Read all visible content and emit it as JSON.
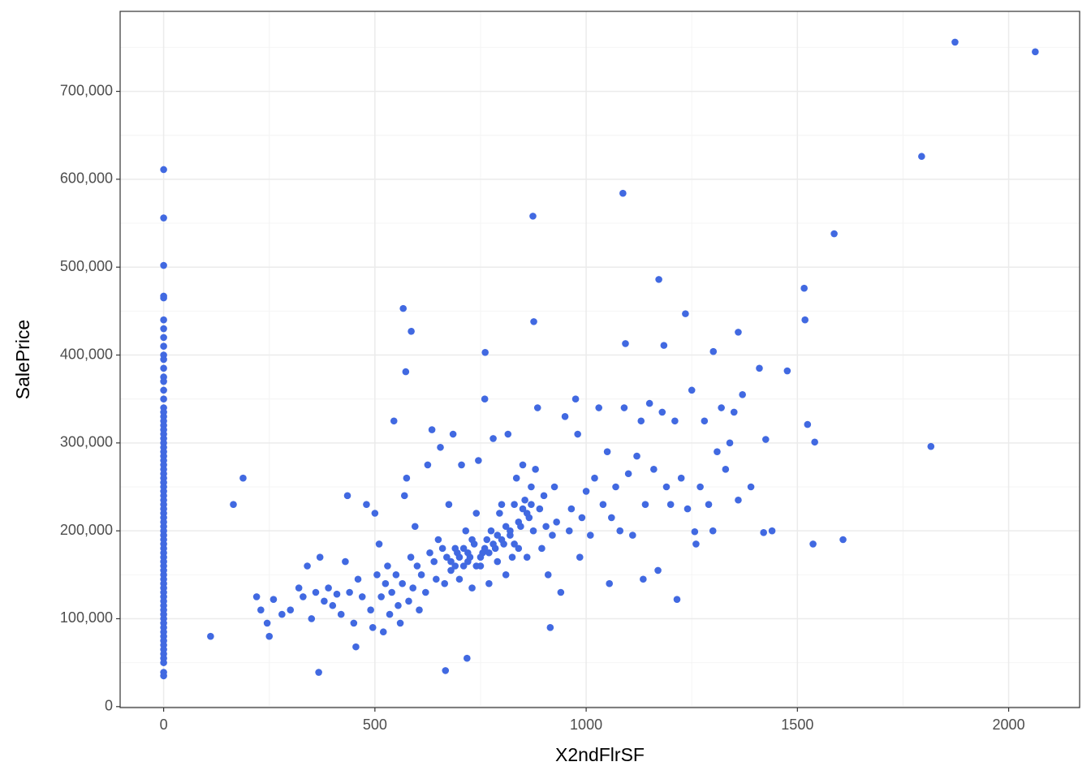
{
  "chart_data": {
    "type": "scatter",
    "xlabel": "X2ndFlrSF",
    "ylabel": "SalePrice",
    "color": "#4169e1",
    "grid": true,
    "xlim": [
      -103,
      2168
    ],
    "ylim": [
      -1105,
      791005
    ],
    "xticks": [
      0,
      500,
      1000,
      1500,
      2000
    ],
    "yticks": [
      0,
      {
        "value": 100000,
        "label": "100,000"
      },
      {
        "value": 200000,
        "label": "200,000"
      },
      {
        "value": 300000,
        "label": "300,000"
      },
      {
        "value": 400000,
        "label": "400,000"
      },
      {
        "value": 500000,
        "label": "500,000"
      },
      {
        "value": 600000,
        "label": "600,000"
      },
      {
        "value": 700000,
        "label": "700,000"
      }
    ],
    "xminor": [
      250,
      750,
      1250,
      1750
    ],
    "yminor": [
      50000,
      150000,
      250000,
      350000,
      450000,
      550000,
      650000,
      750000
    ],
    "x": [
      0,
      0,
      0,
      0,
      0,
      0,
      0,
      0,
      0,
      0,
      0,
      0,
      0,
      0,
      0,
      0,
      0,
      0,
      0,
      0,
      0,
      0,
      0,
      0,
      0,
      0,
      0,
      0,
      0,
      0,
      0,
      0,
      0,
      0,
      0,
      0,
      0,
      0,
      0,
      0,
      0,
      0,
      0,
      0,
      0,
      0,
      0,
      0,
      0,
      0,
      0,
      0,
      0,
      0,
      0,
      0,
      0,
      0,
      0,
      0,
      0,
      0,
      0,
      0,
      0,
      0,
      0,
      0,
      0,
      0,
      0,
      0,
      0,
      0,
      0,
      0,
      0,
      1873,
      2063,
      1794,
      1587,
      1087,
      874,
      1516,
      1172,
      1235,
      1518,
      1360,
      567,
      586,
      876,
      1093,
      1184,
      761,
      1301,
      1410,
      1476,
      573,
      1816,
      1537,
      1608,
      1524,
      1541,
      1425,
      1257,
      188,
      165,
      111,
      367,
      667,
      718,
      220,
      230,
      245,
      250,
      260,
      280,
      300,
      320,
      330,
      340,
      350,
      360,
      370,
      380,
      390,
      400,
      410,
      420,
      430,
      435,
      440,
      450,
      455,
      460,
      470,
      480,
      490,
      495,
      500,
      505,
      510,
      515,
      520,
      525,
      530,
      535,
      540,
      545,
      550,
      555,
      560,
      565,
      570,
      575,
      580,
      585,
      590,
      595,
      600,
      605,
      610,
      620,
      625,
      630,
      635,
      640,
      645,
      650,
      655,
      660,
      665,
      670,
      675,
      680,
      685,
      690,
      695,
      700,
      705,
      710,
      715,
      720,
      725,
      730,
      735,
      740,
      745,
      750,
      755,
      760,
      765,
      770,
      775,
      780,
      785,
      790,
      795,
      800,
      805,
      810,
      815,
      820,
      825,
      830,
      835,
      840,
      845,
      850,
      855,
      860,
      865,
      870,
      875,
      880,
      885,
      890,
      895,
      900,
      905,
      910,
      915,
      920,
      925,
      930,
      940,
      950,
      960,
      965,
      975,
      980,
      985,
      990,
      1000,
      1010,
      1020,
      1030,
      1040,
      1050,
      1055,
      1060,
      1070,
      1080,
      1090,
      1100,
      1110,
      1120,
      1130,
      1135,
      1140,
      1150,
      1160,
      1170,
      1180,
      1190,
      1200,
      1210,
      1215,
      1225,
      1240,
      1250,
      1260,
      1270,
      1280,
      1290,
      1300,
      1310,
      1320,
      1330,
      1340,
      1350,
      1360,
      1370,
      1390,
      1420,
      1440,
      680,
      700,
      720,
      740,
      760,
      780,
      800,
      820,
      840,
      860,
      690,
      710,
      730,
      750,
      770,
      790,
      810,
      830,
      850,
      870
    ],
    "y": [
      611000,
      556000,
      502000,
      467000,
      465000,
      440000,
      430000,
      420000,
      410000,
      400000,
      395000,
      385000,
      375000,
      370000,
      360000,
      350000,
      340000,
      335000,
      330000,
      325000,
      320000,
      315000,
      310000,
      305000,
      300000,
      295000,
      290000,
      285000,
      280000,
      275000,
      270000,
      265000,
      260000,
      255000,
      250000,
      245000,
      240000,
      235000,
      230000,
      225000,
      220000,
      215000,
      210000,
      205000,
      200000,
      195000,
      190000,
      185000,
      180000,
      175000,
      170000,
      165000,
      160000,
      155000,
      150000,
      145000,
      140000,
      135000,
      130000,
      125000,
      120000,
      115000,
      110000,
      105000,
      100000,
      95000,
      90000,
      85000,
      80000,
      75000,
      70000,
      65000,
      60000,
      55000,
      50000,
      39000,
      35000,
      756000,
      745000,
      626000,
      538000,
      584000,
      558000,
      476000,
      486000,
      447000,
      440000,
      426000,
      453000,
      427000,
      438000,
      413000,
      411000,
      403000,
      404000,
      385000,
      382000,
      381000,
      296000,
      185000,
      190000,
      321000,
      301000,
      304000,
      199000,
      260000,
      230000,
      80000,
      39000,
      41000,
      55000,
      125000,
      110000,
      95000,
      80000,
      122000,
      105000,
      110000,
      135000,
      125000,
      160000,
      100000,
      130000,
      170000,
      120000,
      135000,
      115000,
      128000,
      105000,
      165000,
      240000,
      130000,
      95000,
      68000,
      145000,
      125000,
      230000,
      110000,
      90000,
      220000,
      150000,
      185000,
      125000,
      85000,
      140000,
      160000,
      105000,
      130000,
      325000,
      150000,
      115000,
      95000,
      140000,
      240000,
      260000,
      120000,
      170000,
      135000,
      205000,
      160000,
      110000,
      150000,
      130000,
      275000,
      175000,
      315000,
      165000,
      145000,
      190000,
      295000,
      180000,
      140000,
      170000,
      230000,
      155000,
      310000,
      160000,
      175000,
      145000,
      275000,
      180000,
      200000,
      165000,
      170000,
      135000,
      185000,
      220000,
      280000,
      160000,
      175000,
      350000,
      190000,
      140000,
      200000,
      305000,
      180000,
      165000,
      220000,
      230000,
      185000,
      150000,
      310000,
      195000,
      170000,
      230000,
      260000,
      180000,
      205000,
      275000,
      235000,
      170000,
      215000,
      250000,
      200000,
      270000,
      340000,
      225000,
      180000,
      240000,
      205000,
      150000,
      90000,
      195000,
      250000,
      210000,
      130000,
      330000,
      200000,
      225000,
      350000,
      310000,
      170000,
      215000,
      245000,
      195000,
      260000,
      340000,
      230000,
      290000,
      140000,
      215000,
      250000,
      200000,
      340000,
      265000,
      195000,
      285000,
      325000,
      145000,
      230000,
      345000,
      270000,
      155000,
      335000,
      250000,
      230000,
      325000,
      122000,
      260000,
      225000,
      360000,
      185000,
      250000,
      325000,
      230000,
      200000,
      290000,
      340000,
      270000,
      300000,
      335000,
      235000,
      355000,
      250000,
      198000,
      200000,
      165000,
      170000,
      175000,
      160000,
      180000,
      185000,
      190000,
      200000,
      210000,
      220000,
      180000,
      160000,
      190000,
      170000,
      175000,
      195000,
      205000,
      185000,
      225000,
      230000
    ]
  }
}
